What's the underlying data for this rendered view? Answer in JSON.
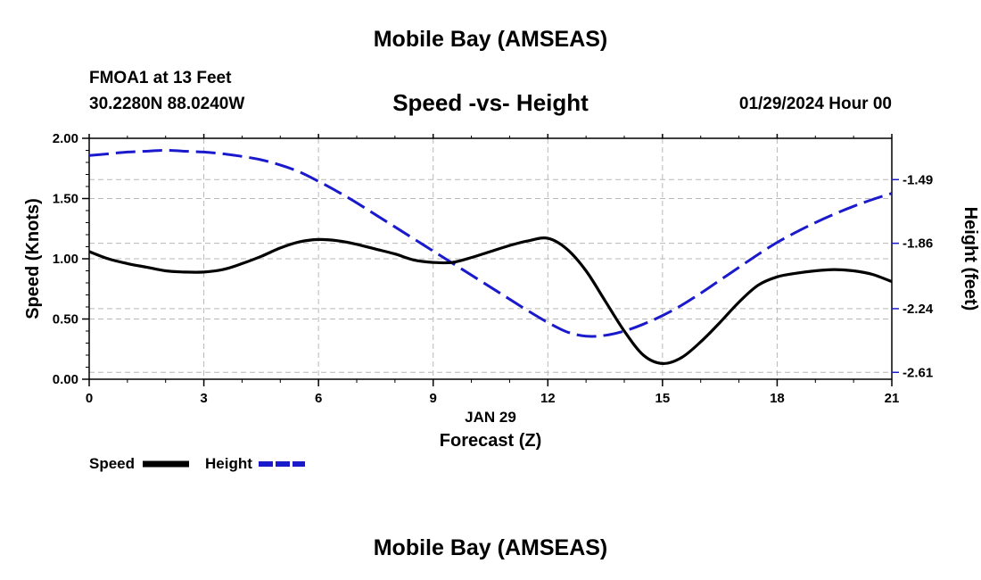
{
  "header": {
    "title": "Mobile Bay (AMSEAS)",
    "station": "FMOA1 at 13 Feet",
    "coords": "30.2280N  88.0240W",
    "plot_title": "Speed -vs- Height",
    "date": "01/29/2024 Hour 00"
  },
  "footer": {
    "title": "Mobile Bay (AMSEAS)"
  },
  "legend": {
    "speed_label": "Speed",
    "height_label": "Height",
    "speed_color": "#000000",
    "height_color": "#1a1acc"
  },
  "chart_data": {
    "type": "line",
    "title": "Speed -vs- Height",
    "xlabel": "Forecast (Z)",
    "xlabel_date": "JAN 29",
    "ylabel": "Speed (Knots)",
    "ylabel_right": "Height (feet)",
    "xlim": [
      0,
      21
    ],
    "ylim": [
      0,
      2.0
    ],
    "ylim_right": [
      -2.65,
      -1.25
    ],
    "x_ticks": [
      0,
      3,
      6,
      9,
      12,
      15,
      18,
      21
    ],
    "x_tick_labels": [
      "0",
      "3",
      "6",
      "9",
      "12",
      "15",
      "18",
      "21"
    ],
    "y_ticks": [
      0,
      0.5,
      1.0,
      1.5,
      2.0
    ],
    "y_tick_labels": [
      "0.00",
      "0.50",
      "1.00",
      "1.50",
      "2.00"
    ],
    "y_right_ticks": [
      -2.61,
      -2.24,
      -1.86,
      -1.49
    ],
    "y_right_tick_labels": [
      "-2.61",
      "-2.24",
      "-1.86",
      "-1.49"
    ],
    "grid": true,
    "series": [
      {
        "name": "Speed",
        "axis": "left",
        "style": "solid",
        "color": "#000000",
        "x": [
          0,
          0.5,
          1,
          1.5,
          2,
          2.5,
          3,
          3.5,
          4,
          4.5,
          5,
          5.5,
          6,
          6.5,
          7,
          7.5,
          8,
          8.5,
          9,
          9.5,
          10,
          10.5,
          11,
          11.5,
          12,
          12.5,
          13,
          13.5,
          14,
          14.5,
          15,
          15.5,
          16,
          16.5,
          17,
          17.5,
          18,
          18.5,
          19,
          19.5,
          20,
          20.5,
          21
        ],
        "values": [
          1.06,
          1.0,
          0.96,
          0.93,
          0.9,
          0.89,
          0.89,
          0.91,
          0.96,
          1.02,
          1.09,
          1.14,
          1.16,
          1.15,
          1.12,
          1.08,
          1.04,
          0.99,
          0.97,
          0.97,
          1.01,
          1.06,
          1.11,
          1.15,
          1.17,
          1.08,
          0.9,
          0.65,
          0.4,
          0.2,
          0.13,
          0.18,
          0.31,
          0.47,
          0.64,
          0.78,
          0.85,
          0.88,
          0.9,
          0.91,
          0.9,
          0.87,
          0.81
        ]
      },
      {
        "name": "Height",
        "axis": "right",
        "style": "dashed",
        "color": "#1a1acc",
        "x": [
          0,
          0.5,
          1,
          1.5,
          2,
          2.5,
          3,
          3.5,
          4,
          4.5,
          5,
          5.5,
          6,
          6.5,
          7,
          7.5,
          8,
          8.5,
          9,
          9.5,
          10,
          10.5,
          11,
          11.5,
          12,
          12.5,
          13,
          13.5,
          14,
          14.5,
          15,
          15.5,
          16,
          16.5,
          17,
          17.5,
          18,
          18.5,
          19,
          19.5,
          20,
          20.5,
          21
        ],
        "values": [
          -1.35,
          -1.34,
          -1.33,
          -1.325,
          -1.32,
          -1.325,
          -1.33,
          -1.34,
          -1.355,
          -1.375,
          -1.405,
          -1.445,
          -1.5,
          -1.56,
          -1.625,
          -1.695,
          -1.765,
          -1.835,
          -1.905,
          -1.975,
          -2.045,
          -2.115,
          -2.185,
          -2.255,
          -2.32,
          -2.375,
          -2.4,
          -2.395,
          -2.37,
          -2.33,
          -2.28,
          -2.22,
          -2.15,
          -2.075,
          -2.0,
          -1.925,
          -1.855,
          -1.795,
          -1.74,
          -1.69,
          -1.645,
          -1.605,
          -1.57
        ]
      }
    ]
  }
}
